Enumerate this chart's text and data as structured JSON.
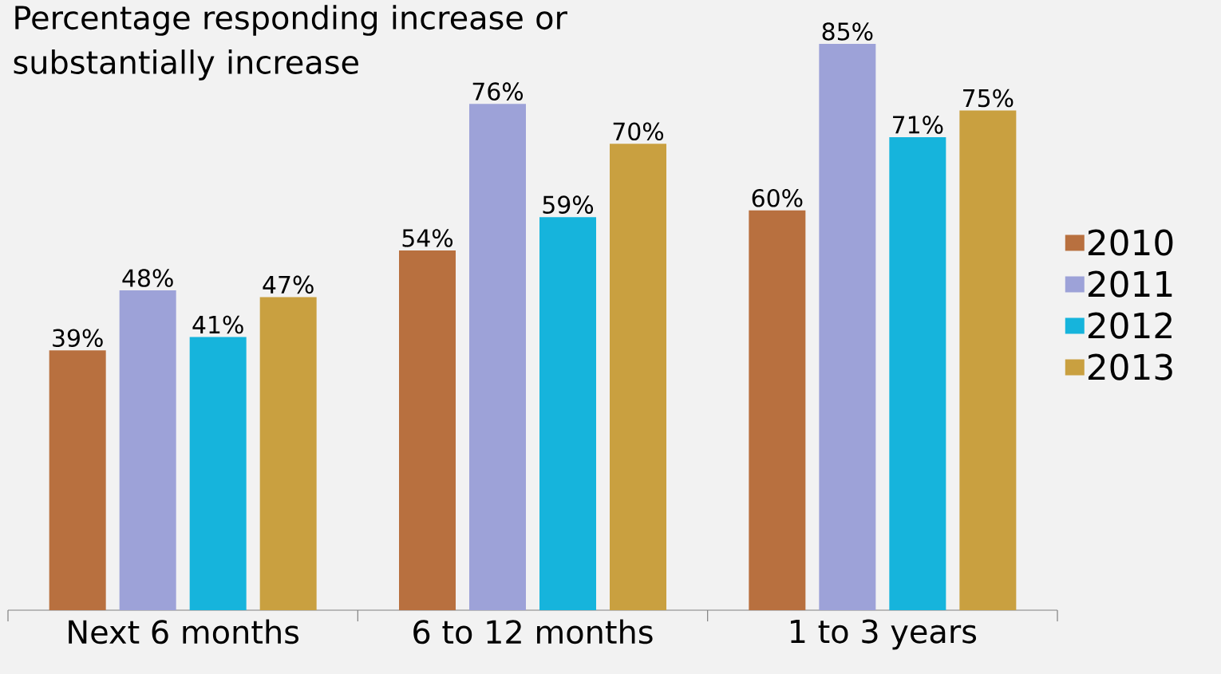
{
  "chart_data": {
    "type": "bar",
    "title": "Percentage responding increase or substantially increase",
    "categories": [
      "Next 6 months",
      "6 to 12 months",
      "1 to 3 years"
    ],
    "series": [
      {
        "name": "2010",
        "color": "#b8703f",
        "values": [
          39,
          54,
          60
        ],
        "value_labels": [
          "39%",
          "54%",
          "60%"
        ]
      },
      {
        "name": "2011",
        "color": "#9da2d8",
        "values": [
          48,
          76,
          85
        ],
        "value_labels": [
          "48%",
          "76%",
          "85%"
        ]
      },
      {
        "name": "2012",
        "color": "#16b4dc",
        "values": [
          41,
          59,
          71
        ],
        "value_labels": [
          "41%",
          "59%",
          "71%"
        ]
      },
      {
        "name": "2013",
        "color": "#c9a040",
        "values": [
          47,
          70,
          75
        ],
        "value_labels": [
          "47%",
          "70%",
          "75%"
        ]
      }
    ],
    "legend": "right"
  }
}
